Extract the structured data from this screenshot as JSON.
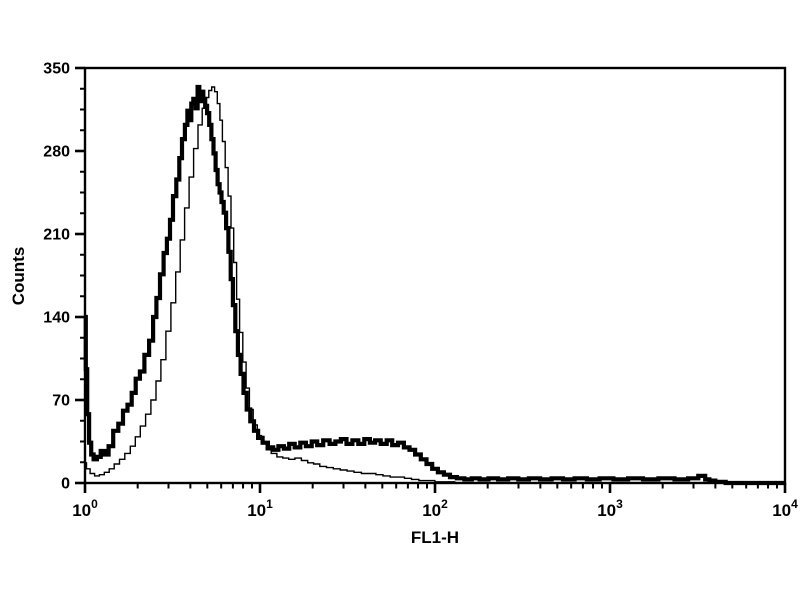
{
  "figure": {
    "background": "#ffffff",
    "ink_color": "#000000"
  },
  "chart_data": {
    "type": "line",
    "subtype": "flow-cytometry-histogram",
    "title": "",
    "xlabel": "FL1-H",
    "ylabel": "Counts",
    "x_scale": "log",
    "xlim": [
      1,
      10000
    ],
    "ylim": [
      0,
      350
    ],
    "y_ticks": [
      0,
      70,
      140,
      210,
      280,
      350
    ],
    "y_minor_step": 17.5,
    "x_major_tick_exponents": [
      0,
      1,
      2,
      3,
      4
    ],
    "x_tick_base": "10",
    "grid": false,
    "legend": null,
    "axis_color": "#000000",
    "series": [
      {
        "name": "bold-trace",
        "color": "#000000",
        "stroke_width": 4.2,
        "points": [
          [
            1.0,
            140
          ],
          [
            1.02,
            96
          ],
          [
            1.04,
            58
          ],
          [
            1.07,
            34
          ],
          [
            1.1,
            24
          ],
          [
            1.14,
            20
          ],
          [
            1.2,
            22
          ],
          [
            1.26,
            27
          ],
          [
            1.33,
            24
          ],
          [
            1.4,
            31
          ],
          [
            1.5,
            44
          ],
          [
            1.6,
            50
          ],
          [
            1.7,
            61
          ],
          [
            1.8,
            66
          ],
          [
            1.9,
            76
          ],
          [
            2.0,
            88
          ],
          [
            2.12,
            94
          ],
          [
            2.25,
            108
          ],
          [
            2.4,
            120
          ],
          [
            2.5,
            140
          ],
          [
            2.62,
            156
          ],
          [
            2.75,
            176
          ],
          [
            2.88,
            194
          ],
          [
            3.0,
            206
          ],
          [
            3.12,
            222
          ],
          [
            3.25,
            242
          ],
          [
            3.4,
            256
          ],
          [
            3.52,
            274
          ],
          [
            3.65,
            290
          ],
          [
            3.8,
            302
          ],
          [
            3.9,
            314
          ],
          [
            4.0,
            306
          ],
          [
            4.1,
            320
          ],
          [
            4.22,
            324
          ],
          [
            4.35,
            316
          ],
          [
            4.45,
            334
          ],
          [
            4.55,
            322
          ],
          [
            4.68,
            330
          ],
          [
            4.8,
            324
          ],
          [
            4.92,
            318
          ],
          [
            5.05,
            312
          ],
          [
            5.2,
            302
          ],
          [
            5.35,
            290
          ],
          [
            5.5,
            278
          ],
          [
            5.65,
            264
          ],
          [
            5.8,
            252
          ],
          [
            5.95,
            245
          ],
          [
            6.1,
            237
          ],
          [
            6.3,
            228
          ],
          [
            6.5,
            215
          ],
          [
            6.7,
            195
          ],
          [
            6.9,
            172
          ],
          [
            7.1,
            150
          ],
          [
            7.35,
            128
          ],
          [
            7.6,
            108
          ],
          [
            7.9,
            92
          ],
          [
            8.2,
            76
          ],
          [
            8.6,
            62
          ],
          [
            9.0,
            52
          ],
          [
            9.5,
            44
          ],
          [
            10.0,
            38
          ],
          [
            10.7,
            34
          ],
          [
            11.5,
            30
          ],
          [
            12.3,
            28
          ],
          [
            13.2,
            31
          ],
          [
            14.2,
            29
          ],
          [
            15.2,
            33
          ],
          [
            16.4,
            30
          ],
          [
            17.6,
            34
          ],
          [
            19,
            31
          ],
          [
            20.5,
            35
          ],
          [
            22,
            32
          ],
          [
            24,
            36
          ],
          [
            26,
            33
          ],
          [
            28,
            35
          ],
          [
            30,
            37
          ],
          [
            32.5,
            33
          ],
          [
            35,
            36
          ],
          [
            38,
            33
          ],
          [
            41,
            37
          ],
          [
            44,
            34
          ],
          [
            47,
            36
          ],
          [
            51,
            33
          ],
          [
            55,
            36
          ],
          [
            59,
            32
          ],
          [
            64,
            34
          ],
          [
            69,
            30
          ],
          [
            74,
            28
          ],
          [
            80,
            24
          ],
          [
            86,
            20
          ],
          [
            93,
            16
          ],
          [
            100,
            12
          ],
          [
            108,
            9
          ],
          [
            117,
            7
          ],
          [
            127,
            5
          ],
          [
            140,
            4
          ],
          [
            155,
            3
          ],
          [
            170,
            4
          ],
          [
            190,
            3
          ],
          [
            215,
            4
          ],
          [
            245,
            3
          ],
          [
            280,
            4
          ],
          [
            320,
            3
          ],
          [
            370,
            4
          ],
          [
            430,
            3
          ],
          [
            500,
            4
          ],
          [
            580,
            3
          ],
          [
            680,
            4
          ],
          [
            800,
            3
          ],
          [
            950,
            4
          ],
          [
            1150,
            3
          ],
          [
            1400,
            4
          ],
          [
            1700,
            3
          ],
          [
            2100,
            4
          ],
          [
            2600,
            3
          ],
          [
            3000,
            4
          ],
          [
            3400,
            6
          ],
          [
            3600,
            3
          ],
          [
            3800,
            2
          ],
          [
            4200,
            1
          ],
          [
            5000,
            0
          ],
          [
            10000,
            0
          ]
        ]
      },
      {
        "name": "thin-trace",
        "color": "#000000",
        "stroke_width": 1.4,
        "points": [
          [
            1.0,
            17
          ],
          [
            1.04,
            12
          ],
          [
            1.1,
            8
          ],
          [
            1.17,
            6
          ],
          [
            1.25,
            7
          ],
          [
            1.33,
            9
          ],
          [
            1.42,
            12
          ],
          [
            1.52,
            16
          ],
          [
            1.63,
            20
          ],
          [
            1.75,
            25
          ],
          [
            1.88,
            31
          ],
          [
            2.0,
            39
          ],
          [
            2.14,
            48
          ],
          [
            2.3,
            58
          ],
          [
            2.46,
            70
          ],
          [
            2.63,
            86
          ],
          [
            2.8,
            104
          ],
          [
            3.0,
            128
          ],
          [
            3.2,
            152
          ],
          [
            3.4,
            178
          ],
          [
            3.6,
            205
          ],
          [
            3.82,
            232
          ],
          [
            4.05,
            258
          ],
          [
            4.3,
            282
          ],
          [
            4.55,
            302
          ],
          [
            4.8,
            316
          ],
          [
            5.0,
            325
          ],
          [
            5.2,
            331
          ],
          [
            5.4,
            334
          ],
          [
            5.6,
            330
          ],
          [
            5.8,
            320
          ],
          [
            6.0,
            306
          ],
          [
            6.2,
            288
          ],
          [
            6.45,
            266
          ],
          [
            6.7,
            242
          ],
          [
            6.95,
            215
          ],
          [
            7.2,
            186
          ],
          [
            7.5,
            155
          ],
          [
            7.8,
            127
          ],
          [
            8.15,
            102
          ],
          [
            8.5,
            80
          ],
          [
            8.9,
            62
          ],
          [
            9.4,
            49
          ],
          [
            9.9,
            40
          ],
          [
            10.5,
            33
          ],
          [
            11.2,
            28
          ],
          [
            12,
            25
          ],
          [
            13,
            22
          ],
          [
            14,
            21
          ],
          [
            15.2,
            20
          ],
          [
            16.5,
            21
          ],
          [
            18,
            19
          ],
          [
            19.5,
            17
          ],
          [
            21,
            16
          ],
          [
            23,
            14
          ],
          [
            25,
            13
          ],
          [
            27.5,
            12
          ],
          [
            30,
            11
          ],
          [
            33,
            10
          ],
          [
            36,
            9
          ],
          [
            40,
            8
          ],
          [
            44,
            8
          ],
          [
            48,
            7
          ],
          [
            53,
            6
          ],
          [
            58,
            5
          ],
          [
            64,
            5
          ],
          [
            70,
            4
          ],
          [
            77,
            3
          ],
          [
            85,
            2
          ],
          [
            95,
            2
          ],
          [
            105,
            1
          ],
          [
            120,
            1
          ],
          [
            140,
            0
          ],
          [
            10000,
            0
          ]
        ]
      }
    ]
  }
}
